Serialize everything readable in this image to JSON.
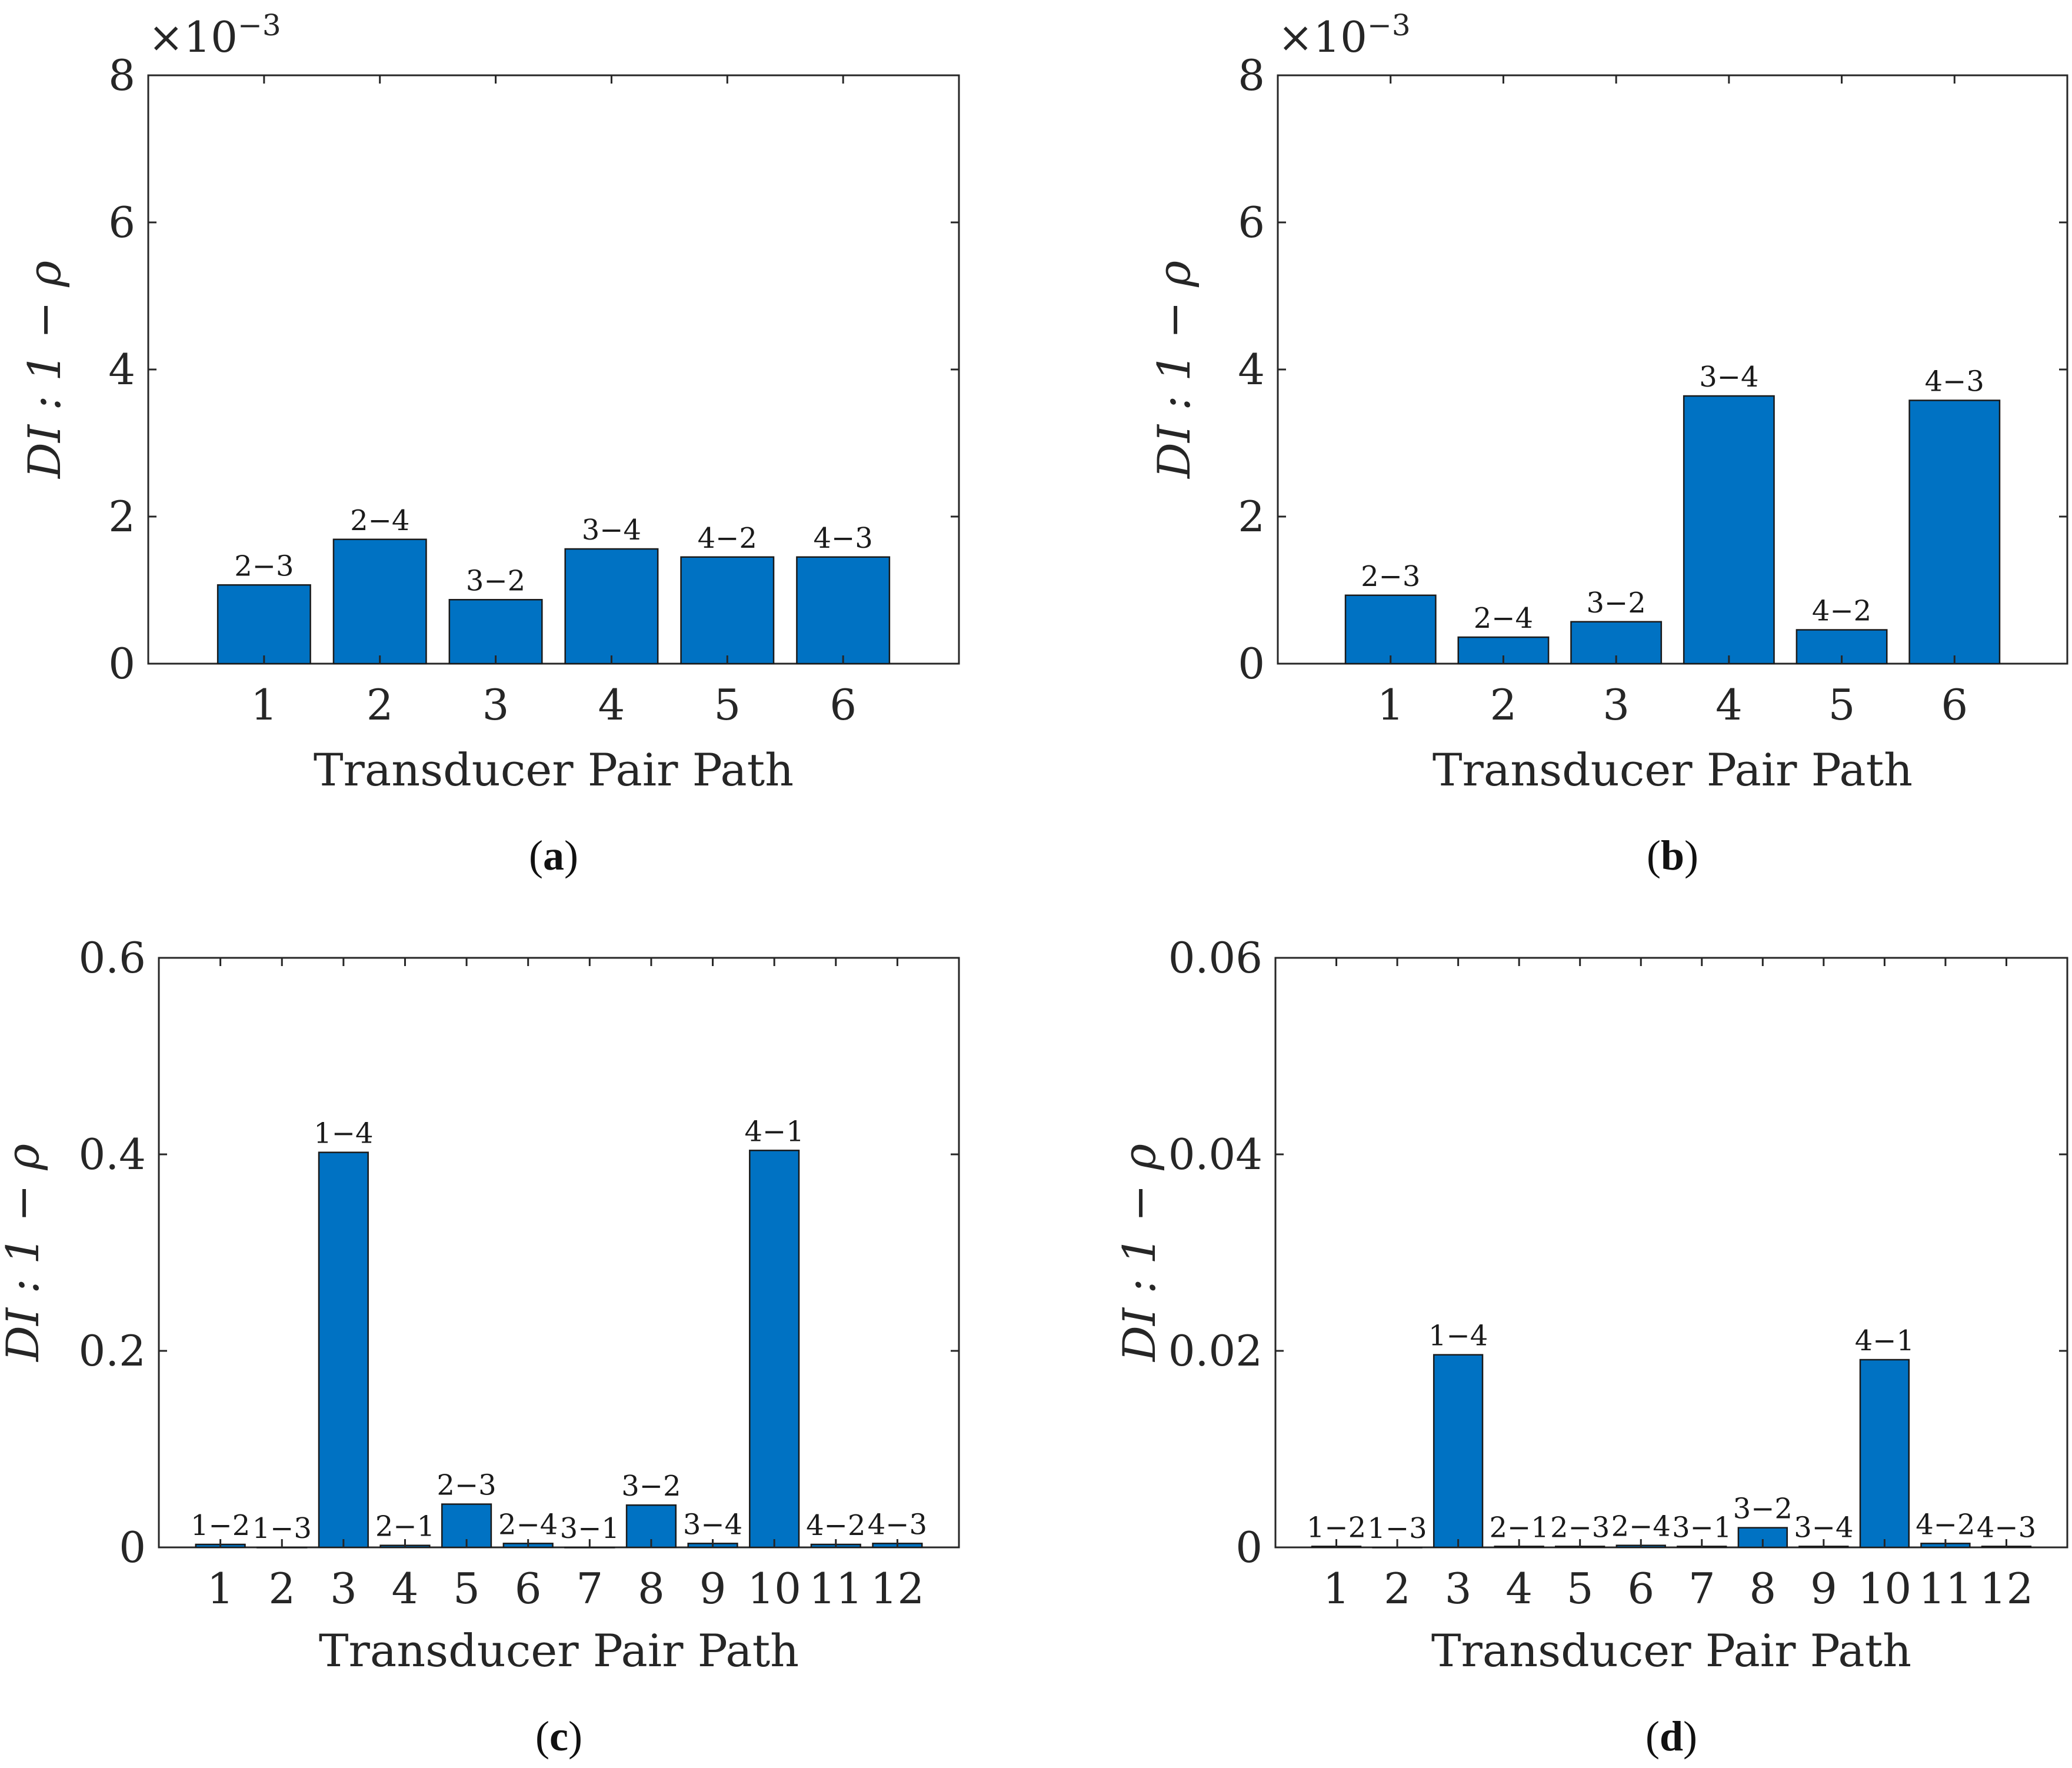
{
  "colors": {
    "bar": "#0072C3",
    "axis": "#262626"
  },
  "chart_data": [
    {
      "type": "bar",
      "caption": "(a)",
      "caption_letter": "a",
      "categories": [
        "1",
        "2",
        "3",
        "4",
        "5",
        "6"
      ],
      "values": [
        0.00107,
        0.00169,
        0.00087,
        0.00156,
        0.00145,
        0.00145
      ],
      "bar_labels": [
        "2−3",
        "2−4",
        "3−2",
        "3−4",
        "4−2",
        "4−3"
      ],
      "title": "",
      "xlabel": "Transducer Pair Path",
      "ylabel": "DI : 1 − ρ",
      "ylim": [
        0,
        0.008
      ],
      "yticks": [
        0,
        0.002,
        0.004,
        0.006,
        0.008
      ],
      "ytick_labels": [
        "0",
        "2",
        "4",
        "6",
        "8"
      ],
      "exponent_label": "×10",
      "exponent_power": "−3",
      "grid": false
    },
    {
      "type": "bar",
      "caption": "(b)",
      "caption_letter": "b",
      "categories": [
        "1",
        "2",
        "3",
        "4",
        "5",
        "6"
      ],
      "values": [
        0.00093,
        0.00036,
        0.00057,
        0.00364,
        0.00046,
        0.00358
      ],
      "bar_labels": [
        "2−3",
        "2−4",
        "3−2",
        "3−4",
        "4−2",
        "4−3"
      ],
      "title": "",
      "xlabel": "Transducer Pair Path",
      "ylabel": "DI : 1 − ρ",
      "ylim": [
        0,
        0.008
      ],
      "yticks": [
        0,
        0.002,
        0.004,
        0.006,
        0.008
      ],
      "ytick_labels": [
        "0",
        "2",
        "4",
        "6",
        "8"
      ],
      "exponent_label": "×10",
      "exponent_power": "−3",
      "grid": false
    },
    {
      "type": "bar",
      "caption": "(c)",
      "caption_letter": "c",
      "categories": [
        "1",
        "2",
        "3",
        "4",
        "5",
        "6",
        "7",
        "8",
        "9",
        "10",
        "11",
        "12"
      ],
      "values": [
        0.003,
        0.0,
        0.402,
        0.002,
        0.044,
        0.004,
        0.0,
        0.043,
        0.004,
        0.404,
        0.003,
        0.004
      ],
      "bar_labels": [
        "1−2",
        "1−3",
        "1−4",
        "2−1",
        "2−3",
        "2−4",
        "3−1",
        "3−2",
        "3−4",
        "4−1",
        "4−2",
        "4−3"
      ],
      "title": "",
      "xlabel": "Transducer Pair Path",
      "ylabel": "DI : 1 − ρ",
      "ylim": [
        0,
        0.6
      ],
      "yticks": [
        0,
        0.2,
        0.4,
        0.6
      ],
      "ytick_labels": [
        "0",
        "0.2",
        "0.4",
        "0.6"
      ],
      "exponent_label": "",
      "exponent_power": "",
      "grid": false
    },
    {
      "type": "bar",
      "caption": "(d)",
      "caption_letter": "d",
      "categories": [
        "1",
        "2",
        "3",
        "4",
        "5",
        "6",
        "7",
        "8",
        "9",
        "10",
        "11",
        "12"
      ],
      "values": [
        0.0001,
        0.0,
        0.0196,
        0.0001,
        0.0001,
        0.0002,
        0.0001,
        0.002,
        0.0001,
        0.0191,
        0.0004,
        0.0001
      ],
      "bar_labels": [
        "1−2",
        "1−3",
        "1−4",
        "2−1",
        "2−3",
        "2−4",
        "3−1",
        "3−2",
        "3−4",
        "4−1",
        "4−2",
        "4−3"
      ],
      "title": "",
      "xlabel": "Transducer Pair Path",
      "ylabel": "DI : 1 − ρ",
      "ylim": [
        0,
        0.06
      ],
      "yticks": [
        0,
        0.02,
        0.04,
        0.06
      ],
      "ytick_labels": [
        "0",
        "0.02",
        "0.04",
        "0.06"
      ],
      "exponent_label": "",
      "exponent_power": "",
      "grid": false
    }
  ]
}
